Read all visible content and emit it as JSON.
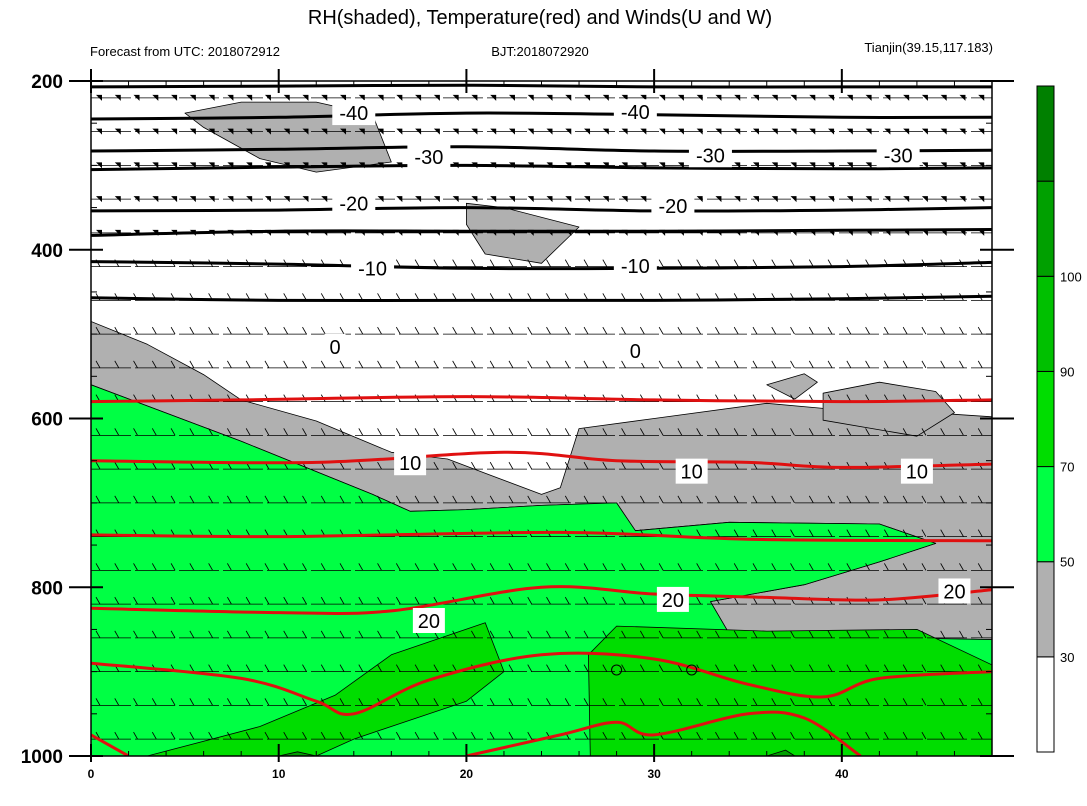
{
  "header": {
    "title": "RH(shaded), Temperature(red) and Winds(U and W)",
    "left_text": "Forecast from UTC: 2018072912",
    "center_text": "BJT:2018072920",
    "right_text": "Tianjin(39.15,117.183)"
  },
  "chart_data": {
    "type": "heatmap",
    "title": "RH(shaded), Temperature(red) and Winds(U and W)",
    "x": {
      "range": [
        0,
        48
      ],
      "ticks": [
        0,
        10,
        20,
        30,
        40
      ],
      "tick_labels": [
        "0",
        "10",
        "20",
        "30",
        "40"
      ]
    },
    "y": {
      "range": [
        200,
        1000
      ],
      "ticks": [
        200,
        400,
        600,
        800,
        1000
      ],
      "tick_labels": [
        "200",
        "400",
        "600",
        "800",
        "1000"
      ],
      "direction": "pressure, increasing downward"
    },
    "colorbar": {
      "levels": [
        30,
        50,
        70,
        90,
        100
      ],
      "tick_labels": [
        "30",
        "50",
        "70",
        "90",
        "100"
      ],
      "colors": [
        "#ffffff",
        "#b0b0b0",
        "#00ff44",
        "#00dd00",
        "#00c000",
        "#00a000",
        "#008000"
      ]
    },
    "rh_regions": [
      {
        "level": 50,
        "polygon": [
          [
            0,
            485
          ],
          [
            3,
            512
          ],
          [
            6,
            548
          ],
          [
            8,
            578
          ],
          [
            12,
            603
          ],
          [
            16,
            640
          ],
          [
            19,
            648
          ],
          [
            21,
            665
          ],
          [
            24,
            690
          ],
          [
            25,
            682
          ],
          [
            26,
            612
          ],
          [
            30,
            600
          ],
          [
            36,
            582
          ],
          [
            39,
            588
          ],
          [
            44,
            592
          ],
          [
            48,
            598
          ],
          [
            48,
            862
          ],
          [
            43,
            860
          ],
          [
            38,
            858
          ],
          [
            34,
            855
          ],
          [
            33,
            817
          ],
          [
            38,
            797
          ],
          [
            42,
            770
          ],
          [
            45,
            748
          ],
          [
            42,
            725
          ],
          [
            34,
            723
          ],
          [
            29,
            733
          ],
          [
            28,
            700
          ],
          [
            24,
            703
          ],
          [
            20,
            708
          ],
          [
            17,
            710
          ],
          [
            15,
            690
          ],
          [
            8,
            627
          ],
          [
            0,
            560
          ]
        ]
      },
      {
        "level": 50,
        "polygon": [
          [
            5,
            238
          ],
          [
            8,
            225
          ],
          [
            12,
            225
          ],
          [
            15,
            240
          ],
          [
            16,
            296
          ],
          [
            12,
            308
          ],
          [
            9,
            292
          ],
          [
            6,
            255
          ]
        ]
      },
      {
        "level": 50,
        "polygon": [
          [
            20,
            345
          ],
          [
            22,
            350
          ],
          [
            26,
            373
          ],
          [
            24,
            416
          ],
          [
            21,
            405
          ],
          [
            20,
            370
          ]
        ]
      },
      {
        "level": 50,
        "polygon": [
          [
            36,
            560
          ],
          [
            38,
            547
          ],
          [
            38.7,
            557
          ],
          [
            37.5,
            577
          ]
        ]
      },
      {
        "level": 50,
        "polygon": [
          [
            39,
            570
          ],
          [
            42,
            557
          ],
          [
            45,
            568
          ],
          [
            46,
            593
          ],
          [
            44,
            621
          ],
          [
            39,
            602
          ]
        ]
      },
      {
        "level": 70,
        "polygon": [
          [
            0,
            560
          ],
          [
            8,
            627
          ],
          [
            15,
            690
          ],
          [
            17,
            710
          ],
          [
            20,
            708
          ],
          [
            24,
            703
          ],
          [
            28,
            700
          ],
          [
            29,
            733
          ],
          [
            34,
            723
          ],
          [
            42,
            725
          ],
          [
            45,
            748
          ],
          [
            42,
            770
          ],
          [
            38,
            797
          ],
          [
            33,
            817
          ],
          [
            34,
            855
          ],
          [
            38,
            858
          ],
          [
            43,
            860
          ],
          [
            48,
            862
          ],
          [
            48,
            1000
          ],
          [
            0,
            1000
          ]
        ]
      },
      {
        "level": 90,
        "polygon": [
          [
            3,
            1000
          ],
          [
            9,
            965
          ],
          [
            13,
            928
          ],
          [
            16,
            880
          ],
          [
            21,
            842
          ],
          [
            22,
            900
          ],
          [
            20,
            935
          ],
          [
            14,
            980
          ],
          [
            12,
            1000
          ]
        ]
      },
      {
        "level": 90,
        "polygon": [
          [
            26.6,
            1000
          ],
          [
            26.5,
            880
          ],
          [
            28,
            846
          ],
          [
            36,
            852
          ],
          [
            44,
            850
          ],
          [
            48,
            892
          ],
          [
            48,
            1000
          ]
        ]
      },
      {
        "level": 100,
        "polygon": [
          [
            10,
            1000
          ],
          [
            11,
            995
          ],
          [
            12,
            1000
          ]
        ]
      },
      {
        "level": 100,
        "polygon": [
          [
            36,
            1000
          ],
          [
            37,
            993
          ],
          [
            37.5,
            1000
          ]
        ]
      }
    ],
    "temperature_isotherms": [
      {
        "value": 10,
        "color": "red",
        "points": [
          [
            0,
            580
          ],
          [
            8,
            578
          ],
          [
            20,
            574
          ],
          [
            30,
            578
          ],
          [
            40,
            580
          ],
          [
            48,
            578
          ]
        ]
      },
      {
        "value": 10,
        "color": "red",
        "points": [
          [
            0,
            650
          ],
          [
            12,
            652
          ],
          [
            22,
            640
          ],
          [
            28,
            650
          ],
          [
            35,
            652
          ],
          [
            40,
            658
          ],
          [
            48,
            654
          ]
        ]
      },
      {
        "value": 20,
        "color": "red",
        "points": [
          [
            0,
            738
          ],
          [
            10,
            740
          ],
          [
            25,
            735
          ],
          [
            35,
            743
          ],
          [
            48,
            745
          ]
        ]
      },
      {
        "value": 20,
        "color": "red",
        "points": [
          [
            0,
            825
          ],
          [
            10,
            830
          ],
          [
            16,
            828
          ],
          [
            24,
            800
          ],
          [
            30,
            808
          ],
          [
            36,
            812
          ],
          [
            42,
            815
          ],
          [
            48,
            803
          ]
        ]
      },
      {
        "value": 20,
        "color": "red",
        "points": [
          [
            0,
            890
          ],
          [
            8,
            908
          ],
          [
            12,
            935
          ],
          [
            14,
            950
          ],
          [
            18,
            910
          ],
          [
            24,
            880
          ],
          [
            30,
            885
          ],
          [
            35,
            915
          ],
          [
            39,
            930
          ],
          [
            42,
            908
          ],
          [
            48,
            900
          ]
        ]
      },
      {
        "value": 20,
        "color": "red",
        "points": [
          [
            0,
            975
          ],
          [
            2,
            1000
          ]
        ]
      },
      {
        "value": 20,
        "color": "red",
        "points": [
          [
            20,
            1000
          ],
          [
            25,
            975
          ],
          [
            28,
            960
          ],
          [
            30,
            975
          ],
          [
            35,
            950
          ],
          [
            38,
            955
          ],
          [
            41,
            1000
          ]
        ]
      }
    ],
    "below_zero_isotherms": [
      {
        "value": -40,
        "points": [
          [
            0,
            207
          ],
          [
            10,
            206
          ],
          [
            20,
            205
          ],
          [
            30,
            207
          ],
          [
            40,
            207
          ],
          [
            48,
            207
          ]
        ]
      },
      {
        "value": -40,
        "points": [
          [
            0,
            245
          ],
          [
            10,
            243
          ],
          [
            20,
            238
          ],
          [
            30,
            240
          ],
          [
            40,
            243
          ],
          [
            48,
            243
          ]
        ]
      },
      {
        "value": -30,
        "points": [
          [
            0,
            283
          ],
          [
            10,
            281
          ],
          [
            20,
            278
          ],
          [
            30,
            283
          ],
          [
            40,
            283
          ],
          [
            48,
            282
          ]
        ]
      },
      {
        "value": -30,
        "points": [
          [
            0,
            305
          ],
          [
            10,
            302
          ],
          [
            20,
            300
          ],
          [
            30,
            303
          ],
          [
            40,
            304
          ],
          [
            48,
            303
          ]
        ]
      },
      {
        "value": -20,
        "points": [
          [
            0,
            354
          ],
          [
            10,
            353
          ],
          [
            20,
            350
          ],
          [
            30,
            354
          ],
          [
            40,
            353
          ],
          [
            48,
            350
          ]
        ]
      },
      {
        "value": -20,
        "points": [
          [
            0,
            383
          ],
          [
            10,
            378
          ],
          [
            20,
            378
          ],
          [
            30,
            378
          ],
          [
            40,
            377
          ],
          [
            48,
            376
          ]
        ]
      },
      {
        "value": -10,
        "points": [
          [
            0,
            414
          ],
          [
            10,
            417
          ],
          [
            20,
            422
          ],
          [
            30,
            422
          ],
          [
            40,
            420
          ],
          [
            48,
            415
          ]
        ]
      },
      {
        "value": -10,
        "points": [
          [
            0,
            457
          ],
          [
            10,
            460
          ],
          [
            20,
            460
          ],
          [
            30,
            460
          ],
          [
            40,
            458
          ],
          [
            48,
            455
          ]
        ]
      }
    ],
    "contour_labels": [
      {
        "text": "-40",
        "x": 14,
        "y": 238
      },
      {
        "text": "-40",
        "x": 29,
        "y": 237
      },
      {
        "text": "-30",
        "x": 18,
        "y": 290
      },
      {
        "text": "-30",
        "x": 33,
        "y": 288
      },
      {
        "text": "-30",
        "x": 43,
        "y": 288
      },
      {
        "text": "-20",
        "x": 14,
        "y": 345
      },
      {
        "text": "-20",
        "x": 31,
        "y": 348
      },
      {
        "text": "-10",
        "x": 15,
        "y": 422
      },
      {
        "text": "-10",
        "x": 29,
        "y": 419
      },
      {
        "text": "0",
        "x": 13,
        "y": 515
      },
      {
        "text": "0",
        "x": 29,
        "y": 520
      },
      {
        "text": "10",
        "x": 17,
        "y": 653
      },
      {
        "text": "10",
        "x": 32,
        "y": 663
      },
      {
        "text": "10",
        "x": 44,
        "y": 663
      },
      {
        "text": "20",
        "x": 18,
        "y": 840
      },
      {
        "text": "20",
        "x": 31,
        "y": 815
      },
      {
        "text": "20",
        "x": 46,
        "y": 805
      }
    ],
    "wind_levels": [
      220,
      260,
      300,
      340,
      380,
      420,
      460,
      500,
      540,
      580,
      620,
      660,
      700,
      740,
      780,
      820,
      860,
      900,
      940,
      980
    ],
    "small_circles": [
      {
        "x": 28,
        "y": 898
      },
      {
        "x": 32,
        "y": 898
      }
    ]
  }
}
